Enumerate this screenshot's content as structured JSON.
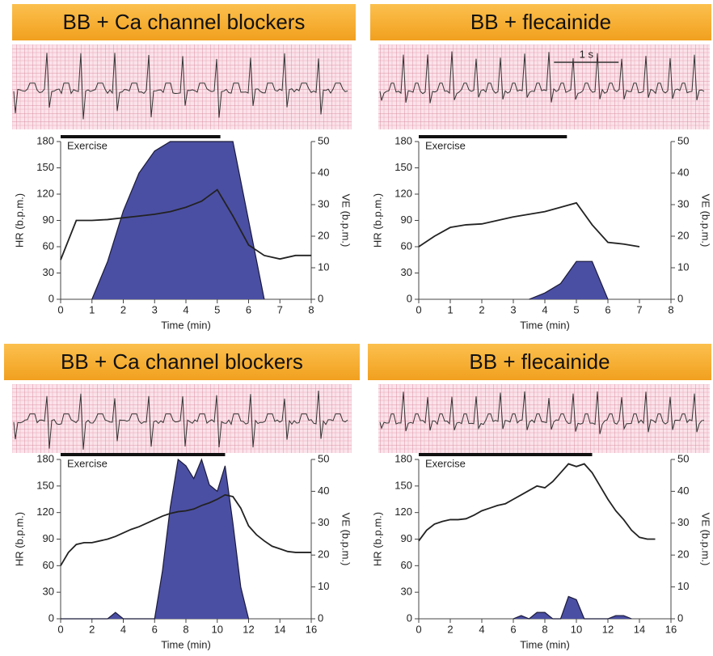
{
  "chart_data": [
    {
      "type": "line",
      "title": "BB + Ca channel blockers",
      "x_label": "Time (min)",
      "y_label": "HR (b.p.m.)",
      "y2_label": "VE (b.p.m.)",
      "exercise": {
        "label": "Exercise",
        "start": 0,
        "end": 5.1
      },
      "x": [
        0,
        0.5,
        1,
        1.5,
        2,
        2.5,
        3,
        3.5,
        4,
        4.5,
        5,
        5.5,
        6,
        6.5,
        7,
        7.5,
        8
      ],
      "xlim": [
        0,
        8
      ],
      "xticks": [
        0,
        1,
        2,
        3,
        4,
        5,
        6,
        7,
        8
      ],
      "ylim": [
        0,
        180
      ],
      "yticks": [
        0,
        30,
        60,
        90,
        120,
        150,
        180
      ],
      "y2lim": [
        0,
        50
      ],
      "y2ticks": [
        0,
        10,
        20,
        30,
        40,
        50
      ],
      "series": [
        {
          "color": "#4b4fa3",
          "axis": "y2",
          "values": [
            null,
            null,
            0,
            12,
            28,
            40,
            47,
            50,
            50,
            50,
            50,
            50,
            25,
            0,
            null,
            null,
            null
          ]
        },
        {
          "color": "#222222",
          "axis": "y",
          "values": [
            45,
            90,
            90,
            91,
            93,
            95,
            97,
            100,
            105,
            112,
            125,
            95,
            62,
            50,
            46,
            50,
            50
          ]
        }
      ]
    },
    {
      "type": "line",
      "title": "BB + flecainide",
      "scale_bar": "1 s",
      "x_label": "Time (min)",
      "y_label": "HR (b.p.m.)",
      "y2_label": "VE (b.p.m.)",
      "exercise": {
        "label": "Exercise",
        "start": 0,
        "end": 4.7
      },
      "x": [
        0,
        0.5,
        1,
        1.5,
        2,
        2.5,
        3,
        3.5,
        4,
        4.5,
        5,
        5.5,
        6,
        6.5,
        7
      ],
      "xlim": [
        0,
        8
      ],
      "xticks": [
        0,
        1,
        2,
        3,
        4,
        5,
        6,
        7,
        8
      ],
      "ylim": [
        0,
        180
      ],
      "yticks": [
        0,
        30,
        60,
        90,
        120,
        150,
        180
      ],
      "y2lim": [
        0,
        50
      ],
      "y2ticks": [
        0,
        10,
        20,
        30,
        40,
        50
      ],
      "series": [
        {
          "color": "#4b4fa3",
          "axis": "y2",
          "values": [
            null,
            null,
            null,
            null,
            null,
            null,
            null,
            0,
            2,
            5,
            12,
            12,
            0,
            null,
            null
          ]
        },
        {
          "color": "#222222",
          "axis": "y",
          "values": [
            60,
            72,
            82,
            85,
            86,
            90,
            94,
            97,
            100,
            105,
            110,
            85,
            65,
            63,
            60
          ]
        }
      ]
    },
    {
      "type": "line",
      "title": "BB + Ca channel blockers",
      "x_label": "Time (min)",
      "y_label": "HR (b.p.m.)",
      "y2_label": "VE (b.p.m.)",
      "exercise": {
        "label": "Exercise",
        "start": 0,
        "end": 10.5
      },
      "x": [
        0,
        0.5,
        1,
        1.5,
        2,
        2.5,
        3,
        3.5,
        4,
        4.5,
        5,
        5.5,
        6,
        6.5,
        7,
        7.5,
        8,
        8.5,
        9,
        9.5,
        10,
        10.5,
        11,
        11.5,
        12,
        12.5,
        13,
        13.5,
        14,
        14.5,
        15,
        15.5,
        16
      ],
      "xlim": [
        0,
        16
      ],
      "xticks": [
        0,
        2,
        4,
        6,
        8,
        10,
        12,
        14,
        16
      ],
      "ylim": [
        0,
        180
      ],
      "yticks": [
        0,
        30,
        60,
        90,
        120,
        150,
        180
      ],
      "y2lim": [
        0,
        50
      ],
      "y2ticks": [
        0,
        10,
        20,
        30,
        40,
        50
      ],
      "series": [
        {
          "color": "#4b4fa3",
          "axis": "y2",
          "values": [
            0,
            0,
            0,
            0,
            0,
            0,
            0,
            2,
            0,
            0,
            0,
            0,
            0,
            15,
            35,
            50,
            48,
            44,
            50,
            42,
            40,
            48,
            30,
            10,
            0,
            null,
            null,
            null,
            null,
            null,
            null,
            null,
            null
          ]
        },
        {
          "color": "#222222",
          "axis": "y",
          "values": [
            60,
            75,
            84,
            86,
            86,
            88,
            90,
            93,
            97,
            101,
            104,
            108,
            112,
            116,
            119,
            121,
            122,
            124,
            128,
            131,
            135,
            140,
            138,
            125,
            105,
            95,
            88,
            82,
            79,
            76,
            75,
            75,
            75
          ]
        }
      ]
    },
    {
      "type": "line",
      "title": "BB + flecainide",
      "x_label": "Time (min)",
      "y_label": "HR (b.p.m.)",
      "y2_label": "VE (b.p.m.)",
      "exercise": {
        "label": "Exercise",
        "start": 0,
        "end": 11
      },
      "x": [
        0,
        0.5,
        1,
        1.5,
        2,
        2.5,
        3,
        3.5,
        4,
        4.5,
        5,
        5.5,
        6,
        6.5,
        7,
        7.5,
        8,
        8.5,
        9,
        9.5,
        10,
        10.5,
        11,
        11.5,
        12,
        12.5,
        13,
        13.5,
        14,
        14.5,
        15
      ],
      "xlim": [
        0,
        16
      ],
      "xticks": [
        0,
        2,
        4,
        6,
        8,
        10,
        12,
        14,
        16
      ],
      "ylim": [
        0,
        180
      ],
      "yticks": [
        0,
        30,
        60,
        90,
        120,
        150,
        180
      ],
      "y2lim": [
        0,
        50
      ],
      "y2ticks": [
        0,
        10,
        20,
        30,
        40,
        50
      ],
      "series": [
        {
          "color": "#4b4fa3",
          "axis": "y2",
          "values": [
            null,
            null,
            null,
            null,
            null,
            null,
            null,
            null,
            null,
            null,
            null,
            null,
            0,
            1,
            0,
            2,
            2,
            0,
            0,
            7,
            6,
            0,
            0,
            0,
            0,
            1,
            1,
            0,
            null,
            null,
            null
          ]
        },
        {
          "color": "#222222",
          "axis": "y",
          "values": [
            88,
            100,
            107,
            110,
            112,
            112,
            113,
            117,
            122,
            125,
            128,
            130,
            135,
            140,
            145,
            150,
            148,
            155,
            165,
            175,
            172,
            175,
            165,
            150,
            135,
            122,
            112,
            100,
            92,
            90,
            90
          ]
        }
      ]
    }
  ]
}
